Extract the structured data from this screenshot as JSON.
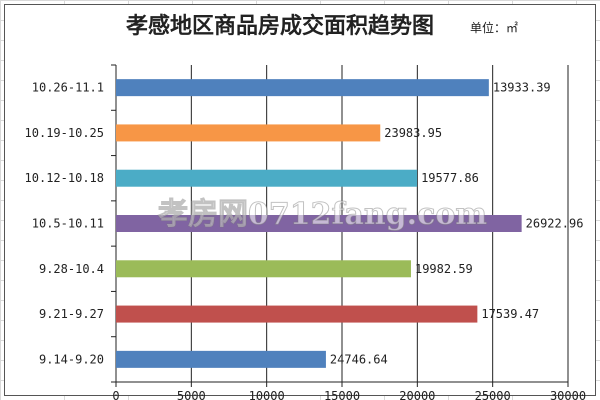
{
  "chart_data": {
    "type": "bar",
    "orientation": "horizontal",
    "title": "孝感地区商品房成交面积趋势图",
    "unit_label": "单位：㎡",
    "categories": [
      "10.26-11.1",
      "10.19-10.25",
      "10.12-10.18",
      "10.5-10.11",
      "9.28-10.4",
      "9.21-9.27",
      "9.14-9.20"
    ],
    "values": [
      24746.64,
      17539.47,
      19982.59,
      26922.96,
      19577.86,
      23983.95,
      13933.39
    ],
    "data_labels": [
      "13933.39",
      "23983.95",
      "19577.86",
      "26922.96",
      "19982.59",
      "17539.47",
      "24746.64"
    ],
    "colors": [
      "#4f81bd",
      "#f79646",
      "#4bacc6",
      "#8064a2",
      "#9bbb59",
      "#c0504d",
      "#4f81bd"
    ],
    "xlim": [
      0,
      30000
    ],
    "xticks": [
      "0",
      "5000",
      "10000",
      "15000",
      "20000",
      "25000",
      "30000"
    ],
    "grid": true,
    "xlabel": "",
    "ylabel": ""
  },
  "watermark": "孝房网0712fang.com"
}
